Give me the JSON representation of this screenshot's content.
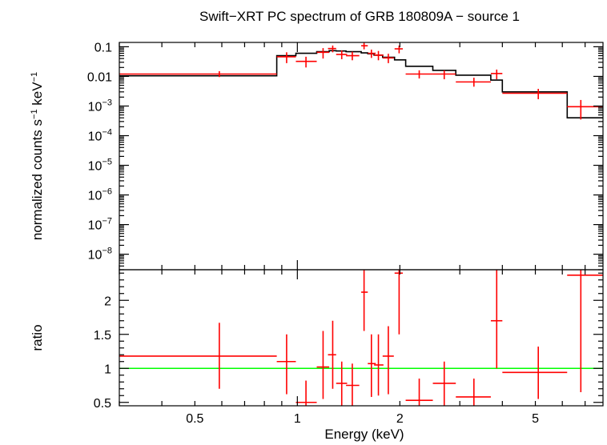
{
  "chart_data": [
    {
      "type": "scatter",
      "panel": "spectrum",
      "title": "Swift−XRT PC spectrum of GRB 180809A − source 1",
      "xlabel": "Energy (keV)",
      "ylabel": "normalized counts s",
      "ylabel_sup1": "−1",
      "ylabel_mid": " keV",
      "ylabel_sup2": "−1",
      "x_scale": "log",
      "y_scale": "log",
      "xlim": [
        0.3,
        7.9
      ],
      "ylim": [
        3e-09,
        0.14
      ],
      "yticks": [
        {
          "value": 0.1,
          "base": "0.1",
          "exp": ""
        },
        {
          "value": 0.01,
          "base": "0.01",
          "exp": ""
        },
        {
          "value": 0.001,
          "base": "10",
          "exp": "−3"
        },
        {
          "value": 0.0001,
          "base": "10",
          "exp": "−4"
        },
        {
          "value": 1e-05,
          "base": "10",
          "exp": "−5"
        },
        {
          "value": 1e-06,
          "base": "10",
          "exp": "−6"
        },
        {
          "value": 1e-07,
          "base": "10",
          "exp": "−7"
        },
        {
          "value": 1e-08,
          "base": "10",
          "exp": "−8"
        }
      ],
      "series": [
        {
          "role": "data",
          "color": "#ff0000",
          "points": [
            {
              "x": 0.59,
              "xlo": 0.3,
              "xhi": 0.87,
              "y": 0.012,
              "ylo": 0.0095,
              "yhi": 0.015
            },
            {
              "x": 0.93,
              "xlo": 0.87,
              "xhi": 0.99,
              "y": 0.046,
              "ylo": 0.028,
              "yhi": 0.065
            },
            {
              "x": 1.06,
              "xlo": 0.99,
              "xhi": 1.14,
              "y": 0.032,
              "ylo": 0.02,
              "yhi": 0.046
            },
            {
              "x": 1.19,
              "xlo": 1.14,
              "xhi": 1.24,
              "y": 0.065,
              "ylo": 0.04,
              "yhi": 0.09
            },
            {
              "x": 1.27,
              "xlo": 1.23,
              "xhi": 1.3,
              "y": 0.087,
              "ylo": 0.065,
              "yhi": 0.11
            },
            {
              "x": 1.35,
              "xlo": 1.3,
              "xhi": 1.4,
              "y": 0.055,
              "ylo": 0.038,
              "yhi": 0.075
            },
            {
              "x": 1.45,
              "xlo": 1.39,
              "xhi": 1.52,
              "y": 0.05,
              "ylo": 0.035,
              "yhi": 0.068
            },
            {
              "x": 1.57,
              "xlo": 1.54,
              "xhi": 1.61,
              "y": 0.108,
              "ylo": 0.082,
              "yhi": 0.135
            },
            {
              "x": 1.65,
              "xlo": 1.61,
              "xhi": 1.7,
              "y": 0.06,
              "ylo": 0.042,
              "yhi": 0.08
            },
            {
              "x": 1.73,
              "xlo": 1.68,
              "xhi": 1.79,
              "y": 0.052,
              "ylo": 0.035,
              "yhi": 0.072
            },
            {
              "x": 1.85,
              "xlo": 1.78,
              "xhi": 1.92,
              "y": 0.042,
              "ylo": 0.028,
              "yhi": 0.058
            },
            {
              "x": 1.99,
              "xlo": 1.93,
              "xhi": 2.04,
              "y": 0.085,
              "ylo": 0.06,
              "yhi": 0.11
            },
            {
              "x": 2.28,
              "xlo": 2.08,
              "xhi": 2.5,
              "y": 0.012,
              "ylo": 0.0085,
              "yhi": 0.016
            },
            {
              "x": 2.7,
              "xlo": 2.5,
              "xhi": 2.92,
              "y": 0.012,
              "ylo": 0.008,
              "yhi": 0.016
            },
            {
              "x": 3.3,
              "xlo": 2.92,
              "xhi": 3.7,
              "y": 0.0065,
              "ylo": 0.0045,
              "yhi": 0.009
            },
            {
              "x": 3.85,
              "xlo": 3.7,
              "xhi": 4.0,
              "y": 0.0125,
              "ylo": 0.008,
              "yhi": 0.017
            },
            {
              "x": 5.1,
              "xlo": 4.0,
              "xhi": 6.2,
              "y": 0.0027,
              "ylo": 0.0017,
              "yhi": 0.0038
            },
            {
              "x": 6.8,
              "xlo": 6.2,
              "xhi": 7.9,
              "y": 0.00095,
              "ylo": 0.00035,
              "yhi": 0.0016
            }
          ]
        },
        {
          "role": "model",
          "color": "#000000",
          "step": [
            {
              "xlo": 0.3,
              "xhi": 0.87,
              "y": 0.0105
            },
            {
              "xlo": 0.87,
              "xhi": 0.99,
              "y": 0.05
            },
            {
              "xlo": 0.99,
              "xhi": 1.14,
              "y": 0.06
            },
            {
              "xlo": 1.14,
              "xhi": 1.24,
              "y": 0.068
            },
            {
              "xlo": 1.24,
              "xhi": 1.3,
              "y": 0.074
            },
            {
              "xlo": 1.3,
              "xhi": 1.39,
              "y": 0.072
            },
            {
              "xlo": 1.39,
              "xhi": 1.54,
              "y": 0.068
            },
            {
              "xlo": 1.54,
              "xhi": 1.61,
              "y": 0.062
            },
            {
              "xlo": 1.61,
              "xhi": 1.68,
              "y": 0.058
            },
            {
              "xlo": 1.68,
              "xhi": 1.78,
              "y": 0.052
            },
            {
              "xlo": 1.78,
              "xhi": 1.93,
              "y": 0.044
            },
            {
              "xlo": 1.93,
              "xhi": 2.08,
              "y": 0.036
            },
            {
              "xlo": 2.08,
              "xhi": 2.5,
              "y": 0.022
            },
            {
              "xlo": 2.5,
              "xhi": 2.92,
              "y": 0.016
            },
            {
              "xlo": 2.92,
              "xhi": 3.7,
              "y": 0.011
            },
            {
              "xlo": 3.7,
              "xhi": 4.0,
              "y": 0.0075
            },
            {
              "xlo": 4.0,
              "xhi": 6.2,
              "y": 0.003
            },
            {
              "xlo": 6.2,
              "xhi": 7.9,
              "y": 0.0004
            }
          ]
        }
      ]
    },
    {
      "type": "scatter",
      "panel": "ratio",
      "xlabel": "Energy (keV)",
      "ylabel": "ratio",
      "x_scale": "log",
      "xlim": [
        0.3,
        7.9
      ],
      "ylim": [
        0.45,
        2.45
      ],
      "xticks": [
        {
          "value": 0.5,
          "label": "0.5"
        },
        {
          "value": 1,
          "label": "1"
        },
        {
          "value": 2,
          "label": "2"
        },
        {
          "value": 5,
          "label": "5"
        }
      ],
      "yticks": [
        {
          "value": 0.5,
          "label": "0.5"
        },
        {
          "value": 1,
          "label": "1"
        },
        {
          "value": 1.5,
          "label": "1.5"
        },
        {
          "value": 2,
          "label": "2"
        }
      ],
      "reference_line": {
        "y": 1,
        "color": "#00ff00"
      },
      "series": [
        {
          "role": "ratio",
          "color": "#ff0000",
          "points": [
            {
              "x": 0.59,
              "xlo": 0.3,
              "xhi": 0.87,
              "y": 1.18,
              "ylo": 0.7,
              "yhi": 1.67
            },
            {
              "x": 0.93,
              "xlo": 0.87,
              "xhi": 0.99,
              "y": 1.1,
              "ylo": 0.62,
              "yhi": 1.5
            },
            {
              "x": 1.06,
              "xlo": 0.99,
              "xhi": 1.14,
              "y": 0.5,
              "ylo": 0.45,
              "yhi": 0.82
            },
            {
              "x": 1.19,
              "xlo": 1.14,
              "xhi": 1.24,
              "y": 1.02,
              "ylo": 0.55,
              "yhi": 1.55
            },
            {
              "x": 1.27,
              "xlo": 1.23,
              "xhi": 1.3,
              "y": 1.2,
              "ylo": 0.7,
              "yhi": 1.7
            },
            {
              "x": 1.35,
              "xlo": 1.3,
              "xhi": 1.4,
              "y": 0.78,
              "ylo": 0.45,
              "yhi": 1.1
            },
            {
              "x": 1.45,
              "xlo": 1.39,
              "xhi": 1.52,
              "y": 0.75,
              "ylo": 0.45,
              "yhi": 1.07
            },
            {
              "x": 1.57,
              "xlo": 1.54,
              "xhi": 1.61,
              "y": 2.12,
              "ylo": 1.55,
              "yhi": 2.45
            },
            {
              "x": 1.65,
              "xlo": 1.61,
              "xhi": 1.7,
              "y": 1.07,
              "ylo": 0.58,
              "yhi": 1.5
            },
            {
              "x": 1.73,
              "xlo": 1.68,
              "xhi": 1.79,
              "y": 1.05,
              "ylo": 0.6,
              "yhi": 1.5
            },
            {
              "x": 1.85,
              "xlo": 1.78,
              "xhi": 1.92,
              "y": 1.18,
              "ylo": 0.62,
              "yhi": 1.62
            },
            {
              "x": 1.99,
              "xlo": 1.93,
              "xhi": 2.04,
              "y": 2.4,
              "ylo": 1.5,
              "yhi": 2.45
            },
            {
              "x": 2.28,
              "xlo": 2.08,
              "xhi": 2.5,
              "y": 0.53,
              "ylo": 0.45,
              "yhi": 0.85
            },
            {
              "x": 2.7,
              "xlo": 2.5,
              "xhi": 2.92,
              "y": 0.78,
              "ylo": 0.45,
              "yhi": 1.1
            },
            {
              "x": 3.3,
              "xlo": 2.92,
              "xhi": 3.7,
              "y": 0.58,
              "ylo": 0.45,
              "yhi": 0.85
            },
            {
              "x": 3.85,
              "xlo": 3.7,
              "xhi": 4.0,
              "y": 1.7,
              "ylo": 1.0,
              "yhi": 2.45
            },
            {
              "x": 5.1,
              "xlo": 4.0,
              "xhi": 6.2,
              "y": 0.94,
              "ylo": 0.55,
              "yhi": 1.32
            },
            {
              "x": 6.8,
              "xlo": 6.2,
              "xhi": 7.9,
              "y": 2.37,
              "ylo": 0.65,
              "yhi": 2.45
            }
          ]
        }
      ]
    }
  ]
}
